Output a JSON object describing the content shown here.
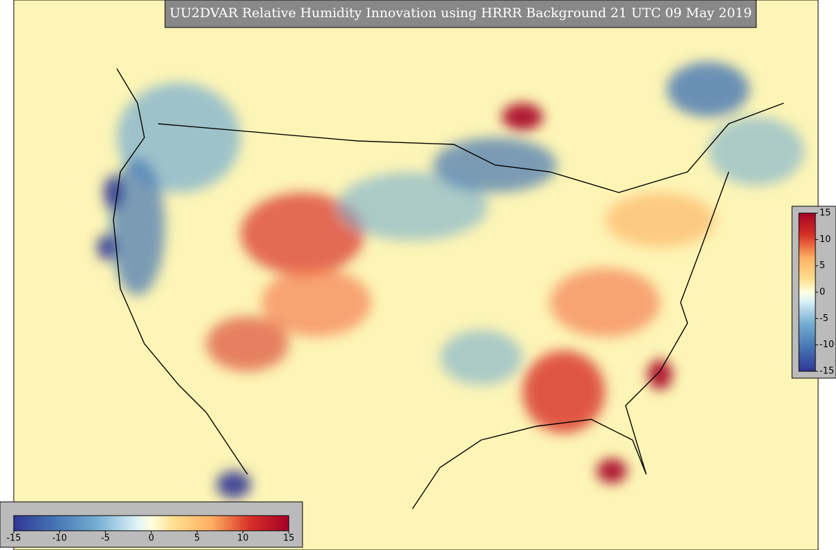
{
  "title": "UU2DVAR Relative Humidity Innovation using HRRR Background 21 UTC 09 May 2019",
  "right_colorbar": {
    "ticks": [
      -15,
      -10,
      -5,
      0,
      5,
      10,
      15
    ]
  },
  "bottom_colorbar": {
    "ticks": [
      -15,
      -10,
      -5,
      0,
      5,
      10,
      15
    ]
  }
}
